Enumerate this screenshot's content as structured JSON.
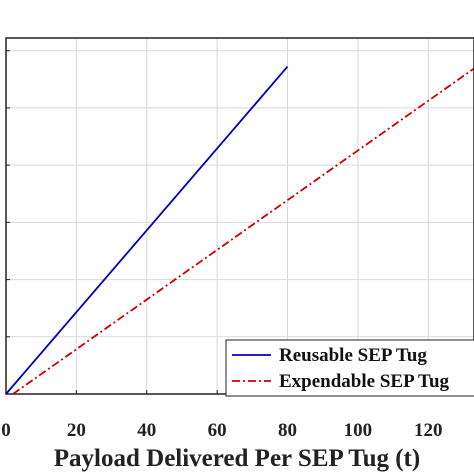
{
  "chart_data": {
    "type": "line",
    "xlabel": "Payload Delivered Per SEP Tug (t)",
    "ylabel": "",
    "xlim": [
      0,
      133
    ],
    "ylim": [
      0,
      112
    ],
    "x_ticks": [
      0,
      20,
      40,
      60,
      80,
      100,
      120
    ],
    "x_tick_labels": [
      "0",
      "20",
      "40",
      "60",
      "80",
      "100",
      "120"
    ],
    "y_ticks": [
      0,
      18,
      36,
      54,
      72,
      90,
      108
    ],
    "grid": true,
    "legend_position": "bottom-right",
    "series": [
      {
        "name": "Reusable SEP Tug",
        "color": "#0000bb",
        "line_style": "solid",
        "x": [
          0,
          80
        ],
        "y": [
          0,
          103
        ]
      },
      {
        "name": "Expendable SEP Tug",
        "color": "#cc0000",
        "line_style": "dash-dot",
        "x": [
          2,
          133
        ],
        "y": [
          0,
          102.4
        ]
      }
    ]
  }
}
